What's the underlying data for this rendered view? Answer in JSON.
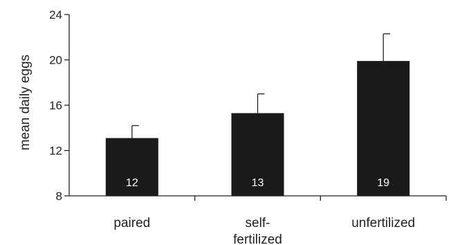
{
  "chart_data": {
    "type": "bar",
    "categories": [
      "paired",
      "self-fertilized",
      "unfertilized"
    ],
    "category_label_lines": [
      [
        "paired"
      ],
      [
        "self-",
        "fertilized"
      ],
      [
        "unfertilized"
      ]
    ],
    "values": [
      13.1,
      15.3,
      19.9
    ],
    "error_upper": [
      14.2,
      17.0,
      22.3
    ],
    "sample_sizes": [
      "12",
      "13",
      "19"
    ],
    "title": "",
    "xlabel": "",
    "ylabel": "mean daily eggs",
    "ylim": [
      8,
      24
    ],
    "yticks": [
      8,
      12,
      16,
      20,
      24
    ],
    "bar_color": "#1a1a1a",
    "grid": false
  }
}
